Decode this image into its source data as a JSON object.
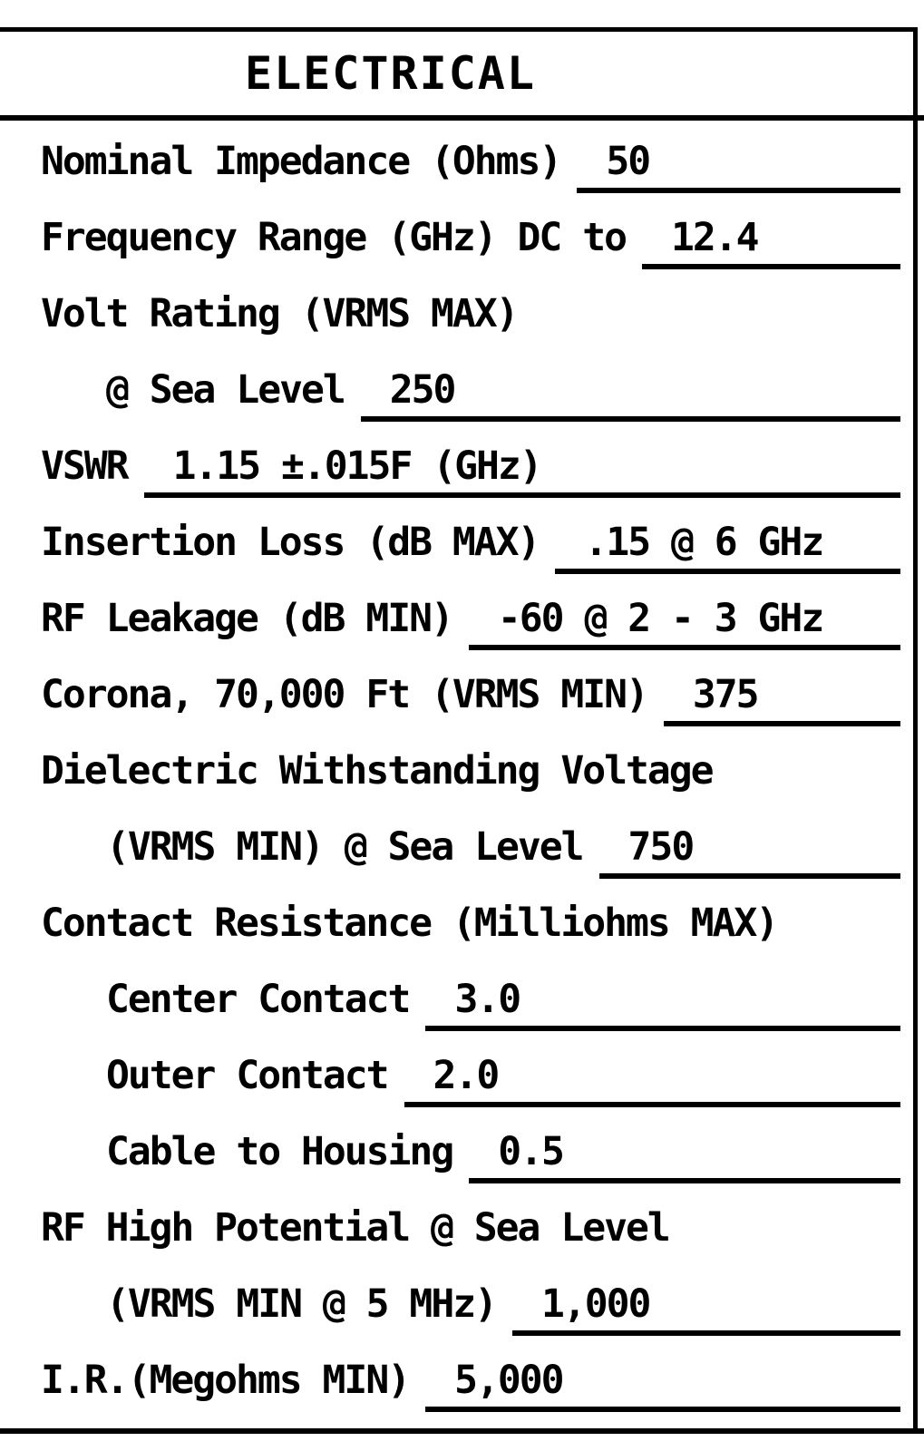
{
  "page": {
    "paper_color": "#ffffff",
    "ink_color": "#000000"
  },
  "table": {
    "title": "ELECTRICAL",
    "rows": [
      {
        "label": "Nominal Impedance (Ohms)",
        "value": "50",
        "indent": 0,
        "underlined": true
      },
      {
        "label": "Frequency Range (GHz) DC to",
        "value": "12.4",
        "indent": 0,
        "underlined": true
      },
      {
        "label": "Volt Rating (VRMS MAX)",
        "value": "",
        "indent": 0,
        "underlined": false
      },
      {
        "label": "@ Sea Level",
        "value": "250",
        "indent": 1,
        "underlined": true
      },
      {
        "label": "VSWR",
        "value": "1.15 ±.015F (GHz)",
        "indent": 0,
        "underlined": true
      },
      {
        "label": "Insertion Loss (dB MAX)",
        "value": ".15 @ 6 GHz",
        "indent": 0,
        "underlined": true
      },
      {
        "label": "RF Leakage (dB MIN)",
        "value": "-60 @ 2 - 3 GHz",
        "indent": 0,
        "underlined": true
      },
      {
        "label": "Corona, 70,000 Ft (VRMS MIN)",
        "value": "375",
        "indent": 0,
        "underlined": true
      },
      {
        "label": "Dielectric Withstanding Voltage",
        "value": "",
        "indent": 0,
        "underlined": false
      },
      {
        "label": "(VRMS MIN) @ Sea Level",
        "value": "750",
        "indent": 1,
        "underlined": true
      },
      {
        "label": "Contact Resistance (Milliohms MAX)",
        "value": "",
        "indent": 0,
        "underlined": false
      },
      {
        "label": "Center Contact",
        "value": "3.0",
        "indent": 1,
        "underlined": true
      },
      {
        "label": "Outer Contact",
        "value": "2.0",
        "indent": 1,
        "underlined": true
      },
      {
        "label": "Cable to Housing",
        "value": "0.5",
        "indent": 1,
        "underlined": true
      },
      {
        "label": "RF High Potential @ Sea Level",
        "value": "",
        "indent": 0,
        "underlined": false
      },
      {
        "label": "(VRMS MIN @ 5 MHz)",
        "value": "1,000",
        "indent": 1,
        "underlined": true
      },
      {
        "label": "I.R.(Megohms MIN)",
        "value": "5,000",
        "indent": 0,
        "underlined": true
      }
    ]
  }
}
